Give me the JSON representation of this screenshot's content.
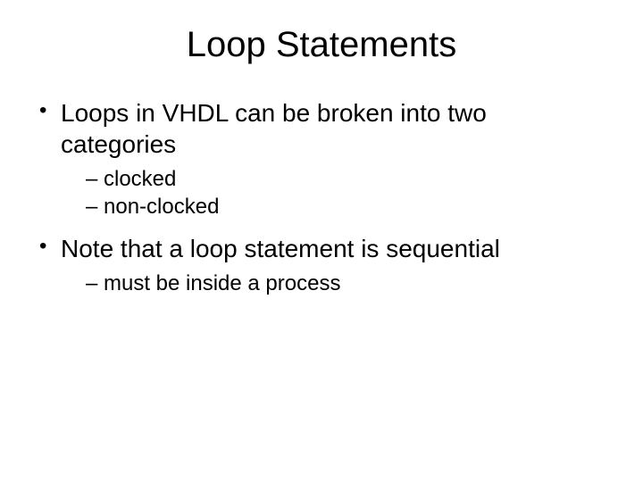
{
  "title": "Loop Statements",
  "bullets": [
    {
      "text": "Loops in VHDL can be broken into two categories",
      "sub": [
        {
          "text": "clocked"
        },
        {
          "text": "non-clocked"
        }
      ]
    },
    {
      "text": "Note that a loop statement is sequential",
      "sub": [
        {
          "text": "must be inside a process"
        }
      ]
    }
  ]
}
